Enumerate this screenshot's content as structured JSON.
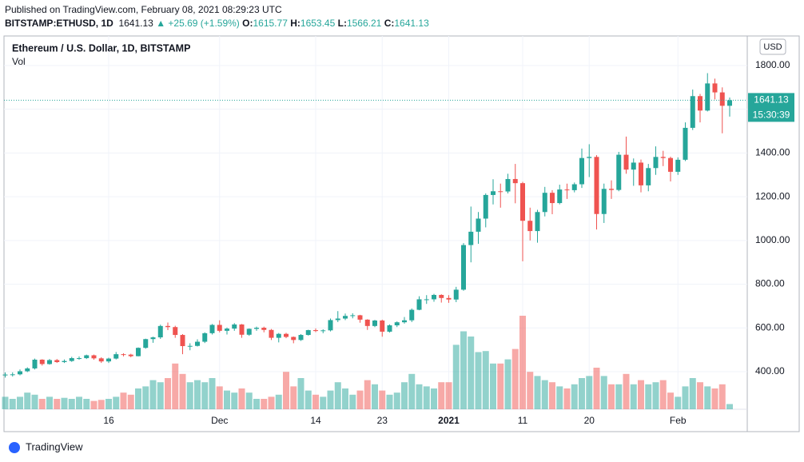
{
  "header": {
    "published": "Published on TradingView.com, February 08, 2021 08:29:23 UTC",
    "symbol": "BITSTAMP:ETHUSD, 1D",
    "price": "1641.13",
    "change": "▲ +25.69 (+1.59%)",
    "o_label": "O:",
    "o": "1615.77",
    "h_label": "H:",
    "h": "1653.45",
    "l_label": "L:",
    "l": "1566.21",
    "c_label": "C:",
    "c": "1641.13"
  },
  "footer": {
    "brand": "TradingView"
  },
  "chart_data": {
    "type": "candlestick",
    "title": "Ethereum / U.S. Dollar, 1D, BITSTAMP",
    "volume_label": "Vol",
    "currency": "USD",
    "countdown": "15:30:39",
    "up_color": "#26a69a",
    "down_color": "#ef5350",
    "grid": true,
    "categories": [
      null,
      null,
      null,
      null,
      null,
      null,
      null,
      null,
      null,
      null,
      null,
      null,
      null,
      null,
      "16",
      null,
      null,
      null,
      null,
      null,
      null,
      null,
      null,
      null,
      null,
      null,
      null,
      null,
      null,
      "Dec",
      null,
      null,
      null,
      null,
      null,
      null,
      null,
      null,
      null,
      null,
      null,
      null,
      "14",
      null,
      null,
      null,
      null,
      null,
      null,
      null,
      null,
      "23",
      null,
      null,
      null,
      null,
      null,
      null,
      null,
      null,
      "2021",
      null,
      null,
      null,
      null,
      null,
      null,
      null,
      null,
      null,
      "11",
      null,
      null,
      null,
      null,
      null,
      null,
      null,
      null,
      "20",
      null,
      null,
      null,
      null,
      null,
      null,
      null,
      null,
      null,
      null,
      null,
      "Feb",
      null,
      null,
      null,
      null,
      null,
      null,
      null
    ],
    "open": [
      383,
      387,
      388,
      402,
      415,
      455,
      435,
      453,
      444,
      449,
      462,
      462,
      475,
      461,
      447,
      460,
      480,
      478,
      471,
      509,
      549,
      557,
      609,
      604,
      568,
      517,
      518,
      537,
      576,
      614,
      587,
      597,
      616,
      569,
      596,
      601,
      591,
      555,
      573,
      559,
      545,
      568,
      590,
      586,
      589,
      636,
      643,
      655,
      658,
      638,
      609,
      634,
      583,
      612,
      626,
      635,
      683,
      731,
      731,
      751,
      737,
      730,
      775,
      979,
      1040,
      1100,
      1208,
      1225,
      1224,
      1281,
      1262,
      1090,
      1043,
      1130,
      1218,
      1171,
      1233,
      1230,
      1257,
      1377,
      1382,
      1121,
      1236,
      1231,
      1392,
      1324,
      1356,
      1252,
      1331,
      1382,
      1377,
      1314,
      1369,
      1515,
      1660,
      1594,
      1718,
      1677,
      1615.77
    ],
    "high": [
      397,
      397,
      410,
      420,
      460,
      457,
      458,
      458,
      456,
      468,
      470,
      478,
      478,
      466,
      464,
      490,
      484,
      482,
      511,
      551,
      560,
      615,
      625,
      610,
      572,
      530,
      548,
      580,
      618,
      635,
      602,
      622,
      618,
      598,
      606,
      606,
      595,
      577,
      578,
      561,
      572,
      592,
      598,
      594,
      643,
      677,
      666,
      667,
      660,
      640,
      637,
      638,
      616,
      630,
      650,
      689,
      745,
      750,
      756,
      754,
      750,
      788,
      988,
      1155,
      1130,
      1215,
      1280,
      1260,
      1305,
      1350,
      1268,
      1150,
      1140,
      1245,
      1230,
      1255,
      1260,
      1265,
      1420,
      1440,
      1390,
      1260,
      1275,
      1405,
      1475,
      1375,
      1370,
      1350,
      1430,
      1410,
      1383,
      1380,
      1540,
      1690,
      1670,
      1765,
      1740,
      1700,
      1653.45
    ],
    "low": [
      373,
      378,
      383,
      398,
      410,
      428,
      432,
      440,
      440,
      445,
      455,
      458,
      455,
      440,
      440,
      456,
      470,
      466,
      470,
      505,
      532,
      550,
      590,
      555,
      480,
      498,
      515,
      531,
      570,
      580,
      570,
      587,
      555,
      564,
      587,
      580,
      545,
      534,
      553,
      530,
      541,
      565,
      581,
      576,
      584,
      627,
      636,
      644,
      624,
      591,
      604,
      560,
      579,
      604,
      620,
      627,
      681,
      710,
      720,
      716,
      715,
      718,
      770,
      900,
      985,
      1060,
      1165,
      1150,
      1215,
      1170,
      905,
      1000,
      990,
      1110,
      1120,
      1165,
      1190,
      1220,
      1240,
      1290,
      1050,
      1080,
      1190,
      1225,
      1305,
      1250,
      1220,
      1225,
      1300,
      1340,
      1270,
      1300,
      1363,
      1505,
      1540,
      1590,
      1645,
      1490,
      1566.21
    ],
    "close": [
      387,
      388,
      402,
      415,
      455,
      435,
      453,
      444,
      449,
      462,
      462,
      475,
      461,
      447,
      460,
      480,
      478,
      471,
      509,
      549,
      557,
      609,
      604,
      568,
      517,
      518,
      537,
      576,
      614,
      587,
      597,
      616,
      569,
      596,
      601,
      591,
      555,
      573,
      559,
      545,
      568,
      590,
      586,
      589,
      636,
      643,
      655,
      658,
      638,
      609,
      634,
      583,
      612,
      626,
      635,
      683,
      731,
      731,
      751,
      737,
      730,
      775,
      979,
      1040,
      1100,
      1208,
      1225,
      1224,
      1281,
      1262,
      1090,
      1043,
      1130,
      1218,
      1171,
      1233,
      1230,
      1257,
      1377,
      1382,
      1121,
      1236,
      1231,
      1392,
      1324,
      1356,
      1252,
      1331,
      1382,
      1377,
      1314,
      1369,
      1515,
      1660,
      1594,
      1718,
      1677,
      1615.77,
      1641.13
    ],
    "volume": [
      12,
      10,
      12,
      16,
      14,
      10,
      12,
      10,
      11,
      10,
      12,
      10,
      8,
      9,
      10,
      12,
      16,
      14,
      20,
      22,
      28,
      26,
      30,
      44,
      34,
      26,
      28,
      26,
      30,
      22,
      18,
      16,
      20,
      16,
      10,
      10,
      12,
      14,
      36,
      22,
      30,
      18,
      14,
      12,
      18,
      26,
      20,
      14,
      18,
      28,
      24,
      18,
      14,
      16,
      26,
      34,
      24,
      22,
      20,
      26,
      26,
      62,
      75,
      70,
      55,
      56,
      44,
      44,
      48,
      58,
      90,
      36,
      32,
      28,
      26,
      22,
      20,
      24,
      30,
      32,
      40,
      32,
      24,
      24,
      34,
      24,
      28,
      24,
      26,
      28,
      16,
      12,
      22,
      30,
      26,
      22,
      20,
      24,
      5
    ],
    "vlim": [
      0,
      100
    ],
    "ylim": [
      126,
      1935
    ],
    "yticks": [
      {
        "value": 400,
        "label": "400.00"
      },
      {
        "value": 600,
        "label": "600.00"
      },
      {
        "value": 800,
        "label": "800.00"
      },
      {
        "value": 1000,
        "label": "1000.00"
      },
      {
        "value": 1200,
        "label": "1200.00"
      },
      {
        "value": 1400,
        "label": "1400.00"
      },
      {
        "value": 1600,
        "label": "1600.00"
      },
      {
        "value": 1800,
        "label": "1800.00"
      }
    ]
  }
}
